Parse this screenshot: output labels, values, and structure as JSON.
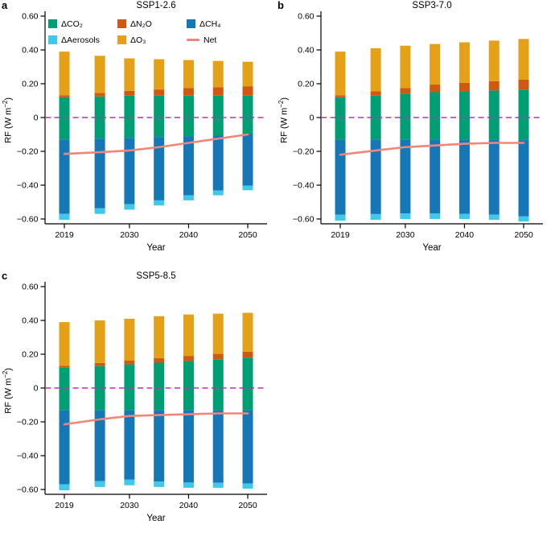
{
  "figure": {
    "background": "#ffffff"
  },
  "axis": {
    "xlabel": "Year",
    "ylabel_pre": "RF (W m",
    "ylabel_sup": "−2",
    "ylabel_post": ")"
  },
  "colors": {
    "co2": "#009E73",
    "n2o": "#CE5A12",
    "o3": "#E4A017",
    "ch4": "#1577B5",
    "aerosols": "#3FC8E9",
    "net": "#F08579",
    "zero": "#B930B9",
    "axis": "#000000"
  },
  "legend": {
    "items": [
      {
        "key": "co2",
        "label": "ΔCO₂",
        "type": "swatch"
      },
      {
        "key": "n2o",
        "label": "ΔN₂O",
        "type": "swatch"
      },
      {
        "key": "ch4",
        "label": "ΔCH₄",
        "type": "swatch"
      },
      {
        "key": "aerosols",
        "label": "ΔAerosols",
        "type": "swatch"
      },
      {
        "key": "o3",
        "label": "ΔO₃",
        "type": "swatch"
      },
      {
        "key": "net",
        "label": "Net",
        "type": "line"
      }
    ]
  },
  "panels": [
    {
      "letter": "a",
      "title": "SSP1-2.6"
    },
    {
      "letter": "b",
      "title": "SSP3-7.0"
    },
    {
      "letter": "c",
      "title": "SSP5-8.5"
    }
  ],
  "chart_data": [
    {
      "type": "bar",
      "subtype": "stacked",
      "panel": "a",
      "title": "SSP1-2.6",
      "xlabel": "Year",
      "ylabel": "RF (W m⁻²)",
      "ylim": [
        -0.63,
        0.63
      ],
      "x_years": [
        2019,
        2025,
        2030,
        2035,
        2040,
        2045,
        2050
      ],
      "x_tick_years": [
        2019,
        2030,
        2040,
        2050
      ],
      "y_ticks": [
        {
          "v": 0.6,
          "label": "0.60"
        },
        {
          "v": 0.4,
          "label": "0.40"
        },
        {
          "v": 0.2,
          "label": "0.20"
        },
        {
          "v": 0,
          "label": "0"
        },
        {
          "v": -0.2,
          "label": "−0.20"
        },
        {
          "v": -0.4,
          "label": "−0.40"
        },
        {
          "v": -0.6,
          "label": "−0.60"
        }
      ],
      "series": [
        {
          "key": "co2_pos",
          "name": "ΔCO₂",
          "color_key": "co2",
          "stack": "pos",
          "values": [
            0.12,
            0.125,
            0.13,
            0.13,
            0.13,
            0.13,
            0.13
          ]
        },
        {
          "key": "n2o",
          "name": "ΔN₂O",
          "color_key": "n2o",
          "stack": "pos",
          "values": [
            0.012,
            0.02,
            0.028,
            0.036,
            0.044,
            0.05,
            0.055
          ]
        },
        {
          "key": "o3",
          "name": "ΔO₃",
          "color_key": "o3",
          "stack": "pos",
          "values": [
            0.258,
            0.22,
            0.192,
            0.179,
            0.166,
            0.155,
            0.145
          ]
        },
        {
          "key": "co2_neg",
          "name": "ΔCO₂",
          "color_key": "co2",
          "stack": "neg",
          "values": [
            -0.13,
            -0.125,
            -0.12,
            -0.115,
            -0.11,
            -0.105,
            -0.1
          ]
        },
        {
          "key": "ch4",
          "name": "ΔCH₄",
          "color_key": "ch4",
          "stack": "neg",
          "values": [
            -0.44,
            -0.412,
            -0.393,
            -0.375,
            -0.35,
            -0.327,
            -0.303
          ]
        },
        {
          "key": "aerosols",
          "name": "ΔAerosols",
          "color_key": "aerosols",
          "stack": "neg",
          "values": [
            -0.035,
            -0.033,
            -0.032,
            -0.03,
            -0.03,
            -0.028,
            -0.027
          ]
        },
        {
          "key": "net",
          "name": "Net",
          "color_key": "net",
          "type": "line",
          "values": [
            -0.215,
            -0.205,
            -0.195,
            -0.175,
            -0.15,
            -0.125,
            -0.1
          ]
        }
      ]
    },
    {
      "type": "bar",
      "subtype": "stacked",
      "panel": "b",
      "title": "SSP3-7.0",
      "xlabel": "Year",
      "ylabel": "RF (W m⁻²)",
      "ylim": [
        -0.63,
        0.63
      ],
      "x_years": [
        2019,
        2025,
        2030,
        2035,
        2040,
        2045,
        2050
      ],
      "x_tick_years": [
        2019,
        2030,
        2040,
        2050
      ],
      "y_ticks": [
        {
          "v": 0.6,
          "label": "0.60"
        },
        {
          "v": 0.4,
          "label": "0.40"
        },
        {
          "v": 0.2,
          "label": "0.20"
        },
        {
          "v": 0,
          "label": "0"
        },
        {
          "v": -0.2,
          "label": "−0.20"
        },
        {
          "v": -0.4,
          "label": "−0.40"
        },
        {
          "v": -0.6,
          "label": "−0.60"
        }
      ],
      "series": [
        {
          "key": "co2_pos",
          "name": "ΔCO₂",
          "color_key": "co2",
          "stack": "pos",
          "values": [
            0.12,
            0.13,
            0.14,
            0.15,
            0.155,
            0.16,
            0.165
          ]
        },
        {
          "key": "n2o",
          "name": "ΔN₂O",
          "color_key": "n2o",
          "stack": "pos",
          "values": [
            0.012,
            0.025,
            0.035,
            0.045,
            0.05,
            0.055,
            0.06
          ]
        },
        {
          "key": "o3",
          "name": "ΔO₃",
          "color_key": "o3",
          "stack": "pos",
          "values": [
            0.258,
            0.255,
            0.25,
            0.24,
            0.24,
            0.24,
            0.24
          ]
        },
        {
          "key": "co2_neg",
          "name": "ΔCO₂",
          "color_key": "co2",
          "stack": "neg",
          "values": [
            -0.13,
            -0.13,
            -0.13,
            -0.13,
            -0.13,
            -0.13,
            -0.13
          ]
        },
        {
          "key": "ch4",
          "name": "ΔCH₄",
          "color_key": "ch4",
          "stack": "neg",
          "values": [
            -0.445,
            -0.441,
            -0.437,
            -0.438,
            -0.439,
            -0.445,
            -0.455
          ]
        },
        {
          "key": "aerosols",
          "name": "ΔAerosols",
          "color_key": "aerosols",
          "stack": "neg",
          "values": [
            -0.035,
            -0.034,
            -0.033,
            -0.032,
            -0.031,
            -0.03,
            -0.03
          ]
        },
        {
          "key": "net",
          "name": "Net",
          "color_key": "net",
          "type": "line",
          "values": [
            -0.22,
            -0.195,
            -0.175,
            -0.165,
            -0.155,
            -0.15,
            -0.15
          ]
        }
      ]
    },
    {
      "type": "bar",
      "subtype": "stacked",
      "panel": "c",
      "title": "SSP5-8.5",
      "xlabel": "Year",
      "ylabel": "RF (W m⁻²)",
      "ylim": [
        -0.63,
        0.63
      ],
      "x_years": [
        2019,
        2025,
        2030,
        2035,
        2040,
        2045,
        2050
      ],
      "x_tick_years": [
        2019,
        2030,
        2040,
        2050
      ],
      "y_ticks": [
        {
          "v": 0.6,
          "label": "0.60"
        },
        {
          "v": 0.4,
          "label": "0.40"
        },
        {
          "v": 0.2,
          "label": "0.20"
        },
        {
          "v": 0,
          "label": "0"
        },
        {
          "v": -0.2,
          "label": "−0.20"
        },
        {
          "v": -0.4,
          "label": "−0.40"
        },
        {
          "v": -0.6,
          "label": "−0.60"
        }
      ],
      "series": [
        {
          "key": "co2_pos",
          "name": "ΔCO₂",
          "color_key": "co2",
          "stack": "pos",
          "values": [
            0.12,
            0.13,
            0.14,
            0.15,
            0.16,
            0.17,
            0.18
          ]
        },
        {
          "key": "n2o",
          "name": "ΔN₂O",
          "color_key": "n2o",
          "stack": "pos",
          "values": [
            0.012,
            0.018,
            0.022,
            0.027,
            0.03,
            0.032,
            0.035
          ]
        },
        {
          "key": "o3",
          "name": "ΔO₃",
          "color_key": "o3",
          "stack": "pos",
          "values": [
            0.258,
            0.252,
            0.248,
            0.248,
            0.245,
            0.238,
            0.23
          ]
        },
        {
          "key": "co2_neg",
          "name": "ΔCO₂",
          "color_key": "co2",
          "stack": "neg",
          "values": [
            -0.13,
            -0.13,
            -0.13,
            -0.13,
            -0.13,
            -0.13,
            -0.13
          ]
        },
        {
          "key": "ch4",
          "name": "ΔCH₄",
          "color_key": "ch4",
          "stack": "neg",
          "values": [
            -0.44,
            -0.421,
            -0.412,
            -0.423,
            -0.429,
            -0.43,
            -0.435
          ]
        },
        {
          "key": "aerosols",
          "name": "ΔAerosols",
          "color_key": "aerosols",
          "stack": "neg",
          "values": [
            -0.035,
            -0.034,
            -0.033,
            -0.032,
            -0.031,
            -0.03,
            -0.03
          ]
        },
        {
          "key": "net",
          "name": "Net",
          "color_key": "net",
          "type": "line",
          "values": [
            -0.215,
            -0.185,
            -0.165,
            -0.16,
            -0.155,
            -0.15,
            -0.15
          ]
        }
      ]
    }
  ]
}
